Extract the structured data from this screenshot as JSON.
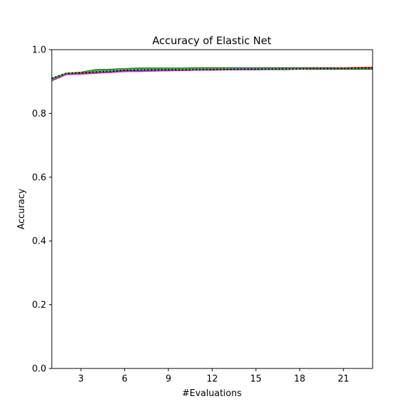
{
  "chart_data": {
    "type": "line",
    "title": "Accuracy of Elastic Net",
    "xlabel": "#Evaluations",
    "ylabel": "Accuracy",
    "xlim": [
      1,
      23
    ],
    "ylim": [
      0.0,
      1.0
    ],
    "xticks": [
      3,
      6,
      9,
      12,
      15,
      18,
      21
    ],
    "xtick_labels": [
      "3",
      "6",
      "9",
      "12",
      "15",
      "18",
      "21"
    ],
    "yticks": [
      0.0,
      0.2,
      0.4,
      0.6,
      0.8,
      1.0
    ],
    "ytick_labels": [
      "0.0",
      "0.2",
      "0.4",
      "0.6",
      "0.8",
      "1.0"
    ],
    "grid": false,
    "legend": "none",
    "x": [
      1,
      2,
      3,
      4,
      5,
      6,
      7,
      8,
      9,
      10,
      11,
      12,
      13,
      14,
      15,
      16,
      17,
      18,
      19,
      20,
      21,
      22,
      23
    ],
    "series": [
      {
        "color": "#4c9a4c",
        "band": true,
        "style": "solid",
        "lower": [
          0.902,
          0.921,
          0.923,
          0.928,
          0.93,
          0.934,
          0.935,
          0.935,
          0.936,
          0.936,
          0.936,
          0.936,
          0.937,
          0.937,
          0.937,
          0.937,
          0.937,
          0.938,
          0.938,
          0.938,
          0.938,
          0.938,
          0.938
        ],
        "upper": [
          0.91,
          0.927,
          0.93,
          0.938,
          0.939,
          0.941,
          0.943,
          0.943,
          0.943,
          0.943,
          0.944,
          0.944,
          0.944,
          0.944,
          0.944,
          0.944,
          0.944,
          0.944,
          0.944,
          0.944,
          0.944,
          0.944,
          0.944
        ]
      },
      {
        "color": "#1f3fff",
        "band": false,
        "style": "solid",
        "values": [
          0.909,
          0.924,
          0.926,
          0.928,
          0.93,
          0.933,
          0.934,
          0.935,
          0.935,
          0.935,
          0.936,
          0.936,
          0.937,
          0.937,
          0.937,
          0.938,
          0.939,
          0.94,
          0.941,
          0.941,
          0.941,
          0.942,
          0.942
        ]
      },
      {
        "color": "#e8202a",
        "band": false,
        "style": "solid",
        "values": [
          0.908,
          0.925,
          0.926,
          0.927,
          0.928,
          0.932,
          0.932,
          0.933,
          0.934,
          0.935,
          0.936,
          0.937,
          0.938,
          0.939,
          0.939,
          0.939,
          0.94,
          0.941,
          0.942,
          0.942,
          0.943,
          0.944,
          0.945
        ]
      },
      {
        "color": "#d030d0",
        "band": false,
        "style": "solid",
        "values": [
          0.907,
          0.922,
          0.923,
          0.926,
          0.929,
          0.931,
          0.932,
          0.933,
          0.934,
          0.935,
          0.936,
          0.937,
          0.937,
          0.938,
          0.938,
          0.939,
          0.939,
          0.939,
          0.94,
          0.94,
          0.94,
          0.941,
          0.941
        ]
      },
      {
        "color": "#14c814",
        "band": false,
        "style": "solid",
        "values": [
          0.91,
          0.926,
          0.928,
          0.935,
          0.936,
          0.938,
          0.941,
          0.941,
          0.941,
          0.941,
          0.941,
          0.941,
          0.941,
          0.941,
          0.941,
          0.941,
          0.941,
          0.941,
          0.941,
          0.941,
          0.941,
          0.941,
          0.941
        ]
      },
      {
        "color": "#000000",
        "band": false,
        "style": "dotted",
        "values": [
          0.91,
          0.926,
          0.927,
          0.93,
          0.932,
          0.935,
          0.936,
          0.937,
          0.937,
          0.937,
          0.938,
          0.938,
          0.938,
          0.939,
          0.939,
          0.939,
          0.94,
          0.94,
          0.941,
          0.941,
          0.941,
          0.942,
          0.942
        ]
      }
    ]
  }
}
